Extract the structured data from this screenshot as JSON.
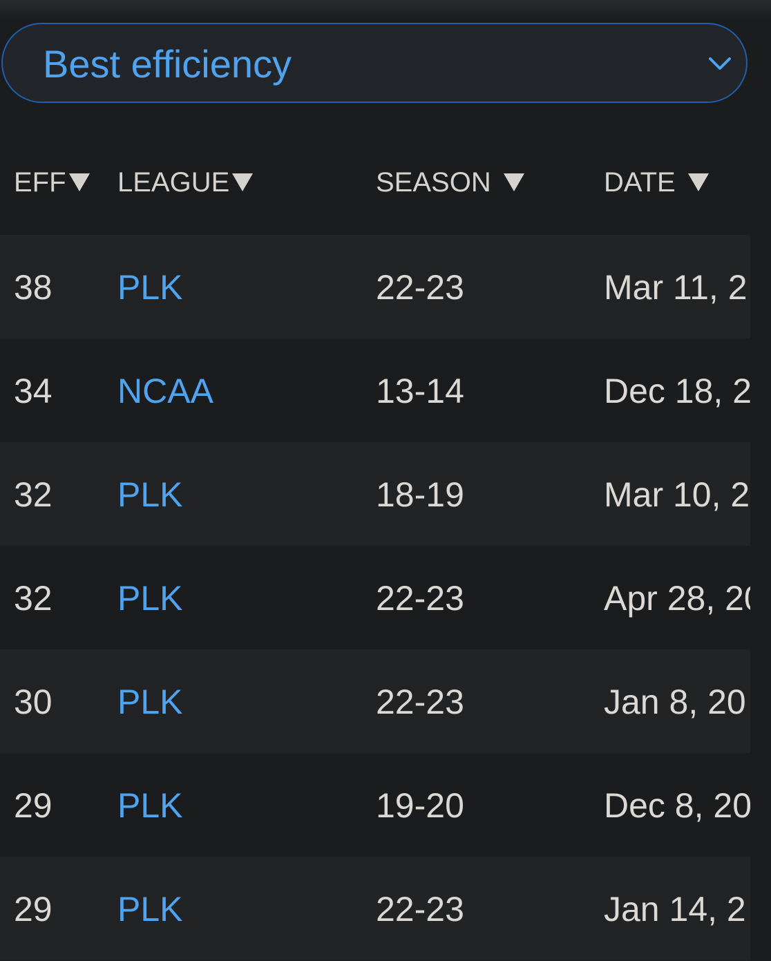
{
  "filter": {
    "selected": "Best efficiency",
    "icon": "chevron-down-icon",
    "accent": "#4fa3ef"
  },
  "table": {
    "headers": {
      "eff": "EFF",
      "league": "LEAGUE",
      "season": "SEASON",
      "date": "DATE"
    },
    "rows": [
      {
        "eff": "38",
        "league": "PLK",
        "season": "22-23",
        "date": "Mar 11, 2"
      },
      {
        "eff": "34",
        "league": "NCAA",
        "season": "13-14",
        "date": "Dec 18, 2"
      },
      {
        "eff": "32",
        "league": "PLK",
        "season": "18-19",
        "date": "Mar 10, 2"
      },
      {
        "eff": "32",
        "league": "PLK",
        "season": "22-23",
        "date": "Apr 28, 20"
      },
      {
        "eff": "30",
        "league": "PLK",
        "season": "22-23",
        "date": "Jan 8, 20"
      },
      {
        "eff": "29",
        "league": "PLK",
        "season": "19-20",
        "date": "Dec 8, 20"
      },
      {
        "eff": "29",
        "league": "PLK",
        "season": "22-23",
        "date": "Jan 14, 2"
      }
    ]
  }
}
